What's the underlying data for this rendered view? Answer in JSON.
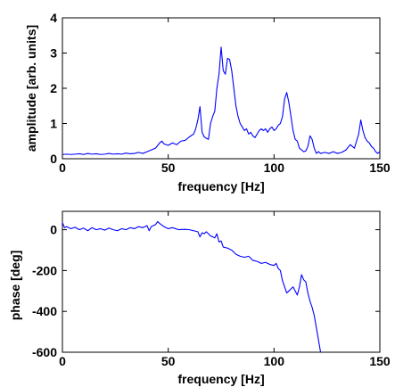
{
  "chart_data": [
    {
      "type": "line",
      "xlabel": "frequency [Hz]",
      "ylabel": "amplitude [arb. units]",
      "xlim": [
        0,
        150
      ],
      "ylim": [
        0,
        4
      ],
      "xticks": [
        0,
        50,
        100,
        150
      ],
      "yticks": [
        0,
        1,
        2,
        3,
        4
      ],
      "grid": false,
      "series": [
        {
          "color": "#0000ff",
          "x": [
            0,
            2,
            4,
            6,
            8,
            10,
            12,
            14,
            16,
            18,
            20,
            22,
            24,
            26,
            28,
            30,
            32,
            34,
            36,
            38,
            40,
            42,
            44,
            46,
            47,
            48,
            50,
            52,
            54,
            56,
            58,
            60,
            62,
            63,
            64,
            65,
            66,
            67,
            68,
            69,
            70,
            71,
            72,
            73,
            74,
            75,
            76,
            77,
            78,
            79,
            80,
            81,
            82,
            83,
            84,
            85,
            86,
            87,
            88,
            89,
            90,
            91,
            92,
            93,
            94,
            95,
            96,
            97,
            98,
            99,
            100,
            101,
            102,
            103,
            104,
            105,
            106,
            107,
            108,
            109,
            110,
            111,
            112,
            113,
            114,
            115,
            116,
            117,
            118,
            119,
            120,
            121,
            122,
            124,
            126,
            128,
            130,
            132,
            134,
            136,
            138,
            139,
            140,
            141,
            142,
            143,
            144,
            145,
            146,
            147,
            148,
            149,
            150
          ],
          "y": [
            0.12,
            0.13,
            0.12,
            0.13,
            0.14,
            0.12,
            0.15,
            0.13,
            0.14,
            0.12,
            0.13,
            0.15,
            0.13,
            0.14,
            0.13,
            0.16,
            0.14,
            0.15,
            0.18,
            0.15,
            0.2,
            0.25,
            0.3,
            0.45,
            0.5,
            0.42,
            0.38,
            0.45,
            0.4,
            0.5,
            0.52,
            0.62,
            0.7,
            0.85,
            1.1,
            1.48,
            0.75,
            0.62,
            0.58,
            0.55,
            1.0,
            1.2,
            1.35,
            2.0,
            2.4,
            3.17,
            2.5,
            2.4,
            2.85,
            2.82,
            2.5,
            2.0,
            1.5,
            1.2,
            1.0,
            0.9,
            0.8,
            0.85,
            0.7,
            0.75,
            0.65,
            0.6,
            0.7,
            0.8,
            0.85,
            0.8,
            0.85,
            0.75,
            0.85,
            0.9,
            0.8,
            0.85,
            0.95,
            1.0,
            1.2,
            1.7,
            1.88,
            1.6,
            1.2,
            0.8,
            0.55,
            0.5,
            0.3,
            0.25,
            0.2,
            0.22,
            0.35,
            0.65,
            0.55,
            0.3,
            0.15,
            0.2,
            0.15,
            0.18,
            0.15,
            0.2,
            0.15,
            0.18,
            0.25,
            0.4,
            0.3,
            0.5,
            0.7,
            1.1,
            0.8,
            0.6,
            0.5,
            0.45,
            0.35,
            0.3,
            0.2,
            0.15,
            0.2
          ]
        }
      ]
    },
    {
      "type": "line",
      "xlabel": "frequency [Hz]",
      "ylabel": "phase [deg]",
      "xlim": [
        0,
        150
      ],
      "ylim": [
        -600,
        90
      ],
      "xticks": [
        0,
        50,
        100,
        150
      ],
      "yticks": [
        0,
        -200,
        -400,
        -600
      ],
      "grid": false,
      "series": [
        {
          "color": "#0000ff",
          "x": [
            0,
            1,
            2,
            4,
            6,
            8,
            10,
            12,
            14,
            16,
            18,
            20,
            22,
            24,
            26,
            28,
            30,
            32,
            34,
            36,
            38,
            40,
            41,
            42,
            44,
            45,
            46,
            48,
            50,
            52,
            55,
            58,
            60,
            62,
            64,
            65,
            66,
            67,
            68,
            70,
            72,
            73,
            74,
            75,
            76,
            78,
            80,
            82,
            84,
            86,
            88,
            90,
            92,
            94,
            96,
            98,
            100,
            101,
            102,
            103,
            104,
            105,
            106,
            107,
            108,
            109,
            110,
            111,
            112,
            113,
            114,
            115,
            116,
            117,
            118,
            119,
            120,
            121,
            122
          ],
          "y": [
            35,
            10,
            15,
            5,
            12,
            0,
            8,
            -5,
            10,
            0,
            5,
            -2,
            8,
            0,
            -5,
            5,
            0,
            10,
            5,
            15,
            10,
            20,
            -5,
            15,
            25,
            40,
            30,
            15,
            5,
            10,
            0,
            2,
            0,
            -5,
            -10,
            -35,
            -15,
            -20,
            -10,
            -30,
            -40,
            -20,
            -60,
            -55,
            -85,
            -90,
            -100,
            -120,
            -130,
            -135,
            -130,
            -150,
            -155,
            -165,
            -160,
            -170,
            -175,
            -165,
            -190,
            -200,
            -250,
            -280,
            -310,
            -300,
            -290,
            -280,
            -300,
            -320,
            -280,
            -220,
            -245,
            -255,
            -310,
            -350,
            -380,
            -420,
            -480,
            -540,
            -610
          ]
        }
      ]
    }
  ]
}
